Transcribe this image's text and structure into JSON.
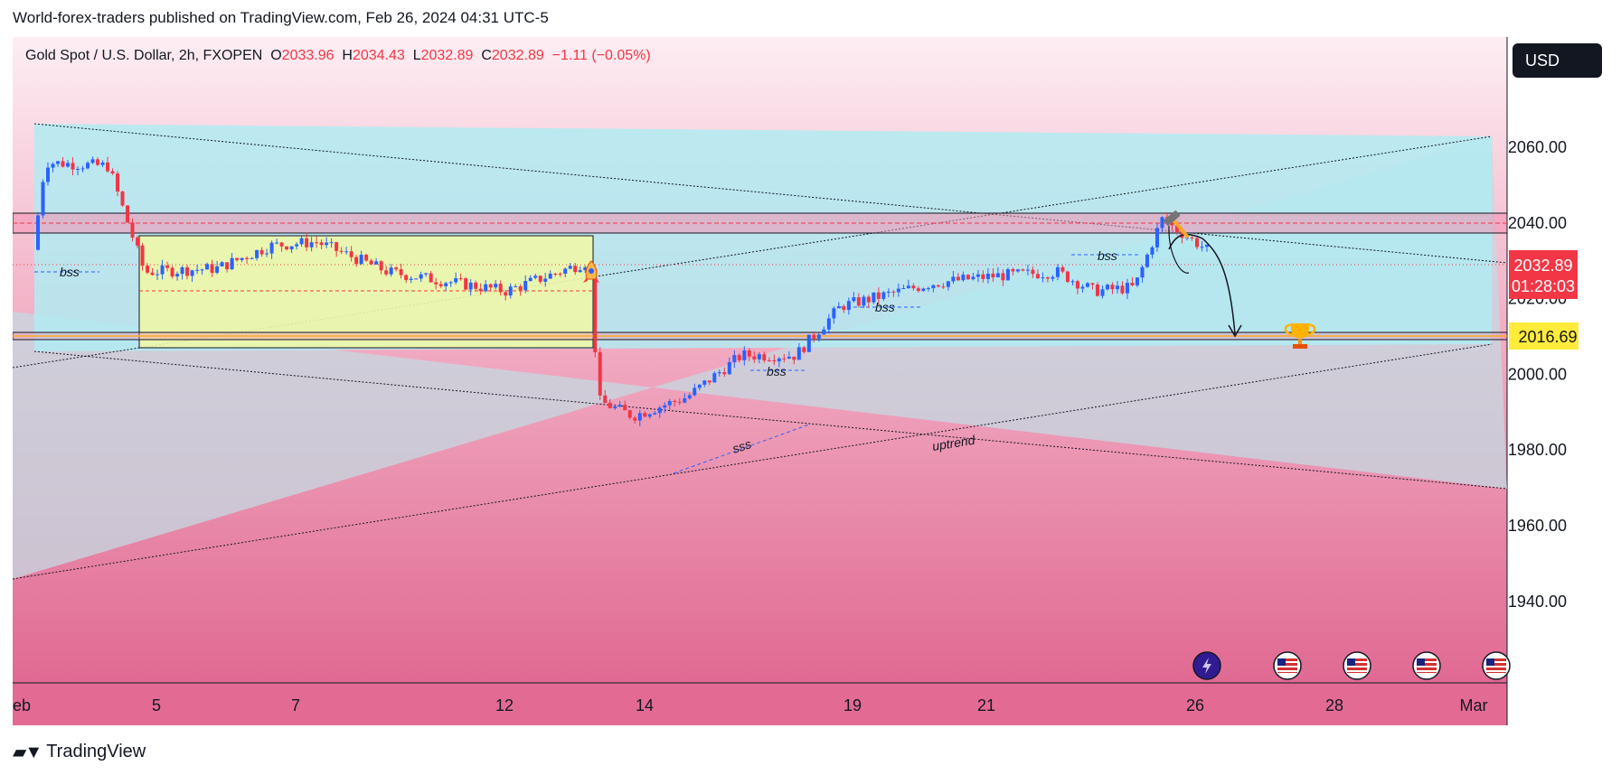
{
  "publisher_line": "World-forex-traders published on TradingView.com, Feb 26, 2024 04:31 UTC-5",
  "legend": {
    "symbol": "Gold Spot / U.S. Dollar, 2h, FXOPEN",
    "open_label": "O",
    "open": "2033.96",
    "high_label": "H",
    "high": "2034.43",
    "low_label": "L",
    "low": "2032.89",
    "close_label": "C",
    "close": "2032.89",
    "change": "−1.11 (−0.05%)"
  },
  "currency_button": "USD",
  "brand": "TradingView",
  "price_scale": {
    "current_price": "2032.89",
    "countdown": "01:28:03",
    "target_price": "2016.69",
    "current_color": "#f23645",
    "target_color": "#ffeb3b"
  },
  "annotations": {
    "bss_1": "bss",
    "bss_2": "bss",
    "bss_3": "bss",
    "bss_4": "bss",
    "sss": "sss",
    "uptrend": "uptrend"
  },
  "icons": [
    "rocket-icon",
    "hammer-icon",
    "trophy-icon",
    "lightning-event-icon",
    "us-flag-event-icon"
  ],
  "colors": {
    "up_candle": "#2962ff",
    "down_candle": "#f23645",
    "triangle_fill": "#b2ebf2",
    "background_top": "#fde8ee",
    "background_bottom": "#e36b93",
    "range_box": "#e8f5a0"
  },
  "chart_data": {
    "type": "candlestick",
    "title": "Gold Spot / U.S. Dollar, 2h, FXOPEN",
    "x_ticks": [
      "eb",
      "5",
      "7",
      "12",
      "14",
      "19",
      "21",
      "26",
      "28",
      "Mar"
    ],
    "y_ticks": [
      "2060.00",
      "2040.00",
      "2020.00",
      "2000.00",
      "1980.00",
      "1960.00",
      "1940.00"
    ],
    "ylim": [
      1936,
      2088
    ],
    "grid": true,
    "ohlc_last": {
      "open": 2033.96,
      "high": 2034.43,
      "low": 2032.89,
      "close": 2032.89
    },
    "change": -1.11,
    "change_pct": -0.05,
    "horizontal_levels": [
      2042,
      2040.5,
      2016.69
    ],
    "price_path": [
      {
        "date": "Feb 2",
        "price": 2035
      },
      {
        "date": "Feb 3",
        "price": 2056
      },
      {
        "date": "Feb 4",
        "price": 2055
      },
      {
        "date": "Feb 5",
        "price": 2027
      },
      {
        "date": "Feb 6",
        "price": 2028
      },
      {
        "date": "Feb 7",
        "price": 2034
      },
      {
        "date": "Feb 8",
        "price": 2035
      },
      {
        "date": "Feb 9",
        "price": 2027
      },
      {
        "date": "Feb 12",
        "price": 2022
      },
      {
        "date": "Feb 13",
        "price": 2030
      },
      {
        "date": "Feb 13",
        "price": 1993
      },
      {
        "date": "Feb 14",
        "price": 1989
      },
      {
        "date": "Feb 15",
        "price": 1994
      },
      {
        "date": "Feb 16",
        "price": 2005
      },
      {
        "date": "Feb 17",
        "price": 2005
      },
      {
        "date": "Feb 19",
        "price": 2018
      },
      {
        "date": "Feb 20",
        "price": 2024
      },
      {
        "date": "Feb 21",
        "price": 2026
      },
      {
        "date": "Feb 22",
        "price": 2027
      },
      {
        "date": "Feb 23",
        "price": 2022
      },
      {
        "date": "Feb 24",
        "price": 2023
      },
      {
        "date": "Feb 25",
        "price": 2041
      },
      {
        "date": "Feb 26",
        "price": 2032.89
      }
    ]
  }
}
